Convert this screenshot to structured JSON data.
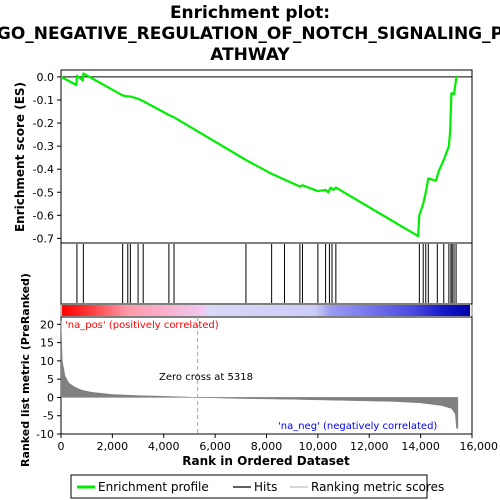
{
  "title_lines": [
    "Enrichment plot:",
    "GO_NEGATIVE_REGULATION_OF_NOTCH_SIGNALING_P",
    "ATHWAY"
  ],
  "colors": {
    "enrichment_line": "#00ee00",
    "hits": "#000000",
    "ranking_fill": "#808080",
    "pos_label": "#ff0000",
    "neg_label": "#0000ff",
    "zero_line": "#aaaaaa",
    "grid_line": "#000000"
  },
  "annotations": {
    "pos_label": "'na_pos' (positively correlated)",
    "neg_label": "'na_neg' (negatively correlated)",
    "zero_cross": "Zero cross at 5318"
  },
  "legend": [
    {
      "key": "enrichment",
      "label": "Enrichment profile",
      "color": "#00ee00"
    },
    {
      "key": "hits",
      "label": "Hits",
      "color": "#000000"
    },
    {
      "key": "ranking",
      "label": "Ranking metric scores",
      "color": "#c0c0c0"
    }
  ],
  "chart_data": [
    {
      "type": "line",
      "panel": "enrichment",
      "ylabel": "Enrichment score (ES)",
      "xlim": [
        0,
        16000
      ],
      "ylim": [
        -0.72,
        0.03
      ],
      "yticks": [
        0.0,
        -0.1,
        -0.2,
        -0.3,
        -0.4,
        -0.5,
        -0.6,
        -0.7
      ],
      "ytick_labels": [
        "0.0",
        "-0.1",
        "-0.2",
        "-0.3",
        "-0.4",
        "-0.5",
        "-0.6",
        "-0.7"
      ],
      "x": [
        0,
        600,
        620,
        850,
        870,
        2400,
        2600,
        2700,
        3000,
        3200,
        4200,
        4400,
        7200,
        8200,
        8700,
        9300,
        9400,
        10000,
        10300,
        10400,
        10500,
        10600,
        10700,
        13900,
        13950,
        14100,
        14200,
        14300,
        14600,
        14700,
        14900,
        15100,
        15150,
        15200,
        15300,
        15400
      ],
      "y": [
        0.0,
        -0.035,
        0.005,
        -0.015,
        0.015,
        -0.08,
        -0.085,
        -0.085,
        -0.095,
        -0.105,
        -0.165,
        -0.175,
        -0.36,
        -0.42,
        -0.445,
        -0.475,
        -0.47,
        -0.495,
        -0.49,
        -0.5,
        -0.48,
        -0.49,
        -0.48,
        -0.69,
        -0.6,
        -0.55,
        -0.5,
        -0.44,
        -0.45,
        -0.41,
        -0.36,
        -0.3,
        -0.23,
        -0.07,
        -0.075,
        0.005
      ]
    },
    {
      "type": "scatter",
      "panel": "hits",
      "x": [
        620,
        870,
        2400,
        2600,
        2700,
        3000,
        3200,
        4200,
        4400,
        7200,
        8200,
        8700,
        9300,
        9400,
        10000,
        10300,
        10450,
        10550,
        10700,
        13950,
        14100,
        14200,
        14300,
        14650,
        14900,
        15100,
        15180,
        15230,
        15300,
        15380
      ]
    },
    {
      "type": "area",
      "panel": "ranking",
      "xlabel": "Rank in Ordered Dataset",
      "ylabel": "Ranked list metric (PreRanked)",
      "xlim": [
        0,
        16000
      ],
      "ylim": [
        -10,
        22
      ],
      "xticks": [
        0,
        2000,
        4000,
        6000,
        8000,
        10000,
        12000,
        14000,
        16000
      ],
      "xtick_labels": [
        "0",
        "2,000",
        "4,000",
        "6,000",
        "8,000",
        "10,000",
        "12,000",
        "14,000",
        "16,000"
      ],
      "yticks": [
        20,
        15,
        10,
        5,
        0,
        -5,
        -10
      ],
      "ytick_labels": [
        "20",
        "15",
        "10",
        "5",
        "0",
        "-5",
        "-10"
      ],
      "zero_cross": 5318,
      "x": [
        0,
        50,
        150,
        300,
        500,
        800,
        1200,
        2000,
        3000,
        4000,
        5318,
        7000,
        9000,
        11000,
        13000,
        14000,
        14800,
        15200,
        15350,
        15400,
        15450
      ],
      "y": [
        21,
        10,
        6,
        4,
        3,
        2,
        1.4,
        0.8,
        0.5,
        0.3,
        0.0,
        -0.3,
        -0.5,
        -0.8,
        -1.1,
        -1.5,
        -2.2,
        -3.0,
        -4.5,
        -8.5,
        -8.5
      ]
    }
  ]
}
